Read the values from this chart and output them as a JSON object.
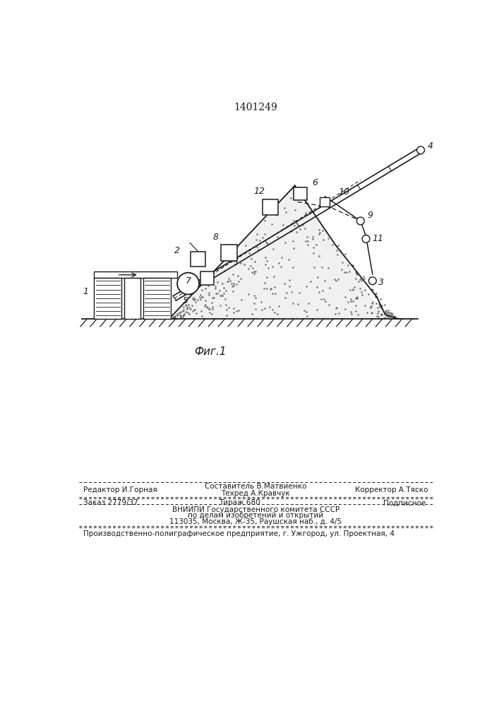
{
  "patent_number": "1401249",
  "fig_label": "Фиг.1",
  "editor_line": "Редактор И.Горная",
  "composer_line1": "Составитель В.Матвиенко",
  "composer_line2": "Техред А.Кравчук",
  "corrector_line": "Корректор А.Тяско",
  "order_line": "Заказ 2779/37",
  "tirazh_line": "Тираж 680",
  "podpisnoe_line": "Подписное",
  "vnipi_line1": "ВНИИПИ Государственного комитета СССР",
  "vnipi_line2": "по делам изобретений и открытий",
  "vnipi_line3": "113035, Москва, Ж-35, Раушская наб., д. 4/5",
  "factory_line": "Производственно-полиграфическое предприятие, г. Ужгород, ул. Проектная, 4",
  "bg_color": "#ffffff",
  "text_color": "#1a1a1a"
}
